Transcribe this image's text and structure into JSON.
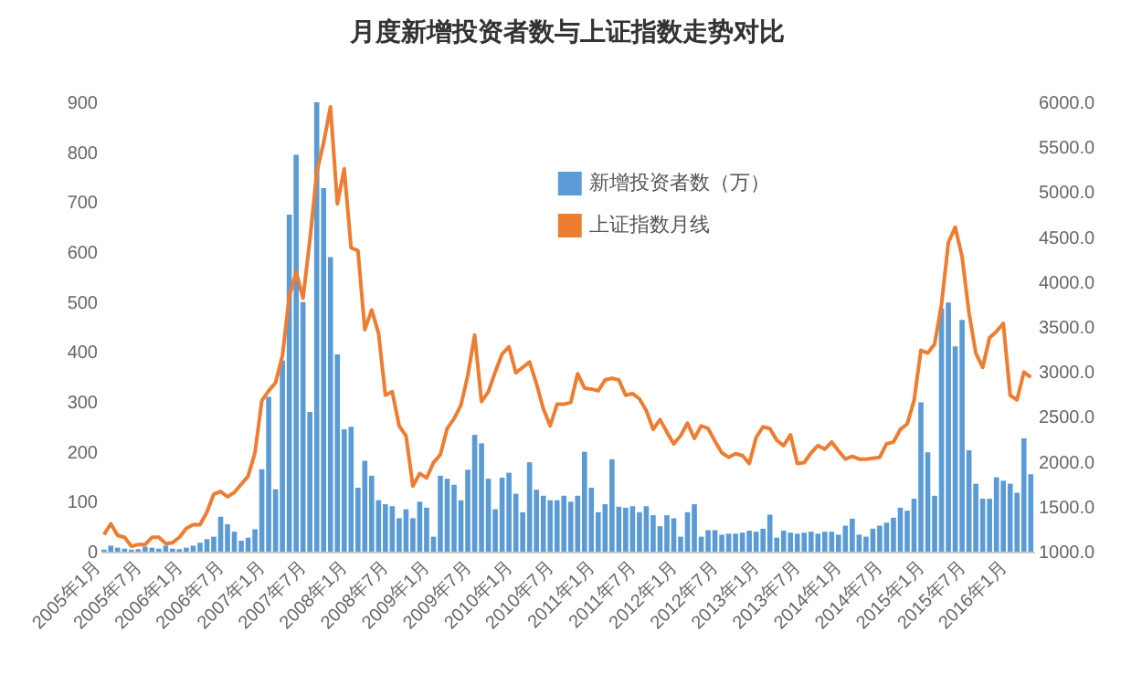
{
  "chart_data": {
    "type": "bar",
    "title": "月度新增投资者数与上证指数走势对比",
    "categories": [
      "2005年1月",
      null,
      null,
      null,
      null,
      null,
      "2005年7月",
      null,
      null,
      null,
      null,
      null,
      "2006年1月",
      null,
      null,
      null,
      null,
      null,
      "2006年7月",
      null,
      null,
      null,
      null,
      null,
      "2007年1月",
      null,
      null,
      null,
      null,
      null,
      "2007年7月",
      null,
      null,
      null,
      null,
      null,
      "2008年1月",
      null,
      null,
      null,
      null,
      null,
      "2008年7月",
      null,
      null,
      null,
      null,
      null,
      "2009年1月",
      null,
      null,
      null,
      null,
      null,
      "2009年7月",
      null,
      null,
      null,
      null,
      null,
      "2010年1月",
      null,
      null,
      null,
      null,
      null,
      "2010年7月",
      null,
      null,
      null,
      null,
      null,
      "2011年1月",
      null,
      null,
      null,
      null,
      null,
      "2011年7月",
      null,
      null,
      null,
      null,
      null,
      "2012年1月",
      null,
      null,
      null,
      null,
      null,
      "2012年7月",
      null,
      null,
      null,
      null,
      null,
      "2013年1月",
      null,
      null,
      null,
      null,
      null,
      "2013年7月",
      null,
      null,
      null,
      null,
      null,
      "2014年1月",
      null,
      null,
      null,
      null,
      null,
      "2014年7月",
      null,
      null,
      null,
      null,
      null,
      "2015年1月",
      null,
      null,
      null,
      null,
      null,
      "2015年7月",
      null,
      null,
      null,
      null,
      null,
      "2016年1月",
      null,
      null,
      null
    ],
    "series": [
      {
        "name": "新增投资者数（万）",
        "type": "bar",
        "color": "#5b9bd5",
        "values": [
          4,
          12,
          8,
          6,
          4,
          5,
          10,
          8,
          6,
          12,
          6,
          5,
          8,
          12,
          18,
          25,
          30,
          70,
          55,
          40,
          22,
          28,
          45,
          165,
          310,
          125,
          383,
          675,
          795,
          500,
          280,
          900,
          728,
          590,
          395,
          245,
          250,
          128,
          182,
          152,
          103,
          95,
          91,
          67,
          85,
          67,
          100,
          88,
          30,
          152,
          146,
          134,
          103,
          164,
          234,
          217,
          146,
          85,
          148,
          158,
          116,
          79,
          179,
          124,
          112,
          103,
          103,
          112,
          100,
          112,
          200,
          128,
          79,
          95,
          185,
          90,
          88,
          91,
          79,
          91,
          73,
          51,
          73,
          67,
          30,
          79,
          95,
          30,
          43,
          43,
          34,
          36,
          36,
          38,
          42,
          40,
          46,
          74,
          28,
          42,
          38,
          36,
          38,
          40,
          36,
          40,
          40,
          34,
          52,
          66,
          34,
          30,
          46,
          52,
          58,
          68,
          88,
          82,
          106,
          299,
          199,
          112,
          487,
          499,
          411,
          464,
          203,
          136,
          106,
          106,
          149,
          142,
          136,
          118,
          227,
          155
        ]
      },
      {
        "name": "上证指数月线",
        "type": "line",
        "axis": "y2",
        "color": "#ed7d31",
        "values": [
          1190,
          1310,
          1180,
          1160,
          1060,
          1080,
          1080,
          1160,
          1160,
          1090,
          1100,
          1160,
          1260,
          1300,
          1300,
          1440,
          1640,
          1670,
          1610,
          1660,
          1750,
          1840,
          2100,
          2680,
          2790,
          2880,
          3180,
          3840,
          4110,
          3820,
          4470,
          5220,
          5550,
          5950,
          4870,
          5260,
          4380,
          4350,
          3470,
          3690,
          3430,
          2740,
          2780,
          2400,
          2290,
          1730,
          1870,
          1820,
          1990,
          2080,
          2370,
          2480,
          2630,
          2960,
          3410,
          2670,
          2780,
          3000,
          3200,
          3280,
          2990,
          3050,
          3110,
          2870,
          2590,
          2400,
          2640,
          2640,
          2660,
          2980,
          2820,
          2810,
          2790,
          2910,
          2930,
          2910,
          2740,
          2760,
          2700,
          2570,
          2360,
          2470,
          2330,
          2200,
          2290,
          2430,
          2260,
          2400,
          2370,
          2230,
          2100,
          2050,
          2090,
          2070,
          1980,
          2270,
          2390,
          2370,
          2240,
          2180,
          2300,
          1980,
          1990,
          2100,
          2180,
          2140,
          2220,
          2120,
          2030,
          2060,
          2030,
          2030,
          2040,
          2050,
          2200,
          2220,
          2360,
          2420,
          2680,
          3240,
          3210,
          3310,
          3750,
          4440,
          4610,
          4280,
          3660,
          3210,
          3050,
          3380,
          3450,
          3540,
          2740,
          2690,
          3000,
          2940
        ]
      }
    ],
    "ylim": [
      0,
      900
    ],
    "yticks": [
      0,
      100,
      200,
      300,
      400,
      500,
      600,
      700,
      800,
      900
    ],
    "y2lim": [
      1000,
      6000
    ],
    "y2ticks": [
      {
        "value": 1000,
        "label": "1000.0"
      },
      {
        "value": 1500,
        "label": "1500.0"
      },
      {
        "value": 2000,
        "label": "2000.0"
      },
      {
        "value": 2500,
        "label": "2500.0"
      },
      {
        "value": 3000,
        "label": "3000.0"
      },
      {
        "value": 3500,
        "label": "3500.0"
      },
      {
        "value": 4000,
        "label": "4000.0"
      },
      {
        "value": 4500,
        "label": "4500.0"
      },
      {
        "value": 5000,
        "label": "5000.0"
      },
      {
        "value": 5500,
        "label": "5500.0"
      },
      {
        "value": 6000,
        "label": "6000.0"
      }
    ],
    "legend": "top",
    "grid": false
  }
}
